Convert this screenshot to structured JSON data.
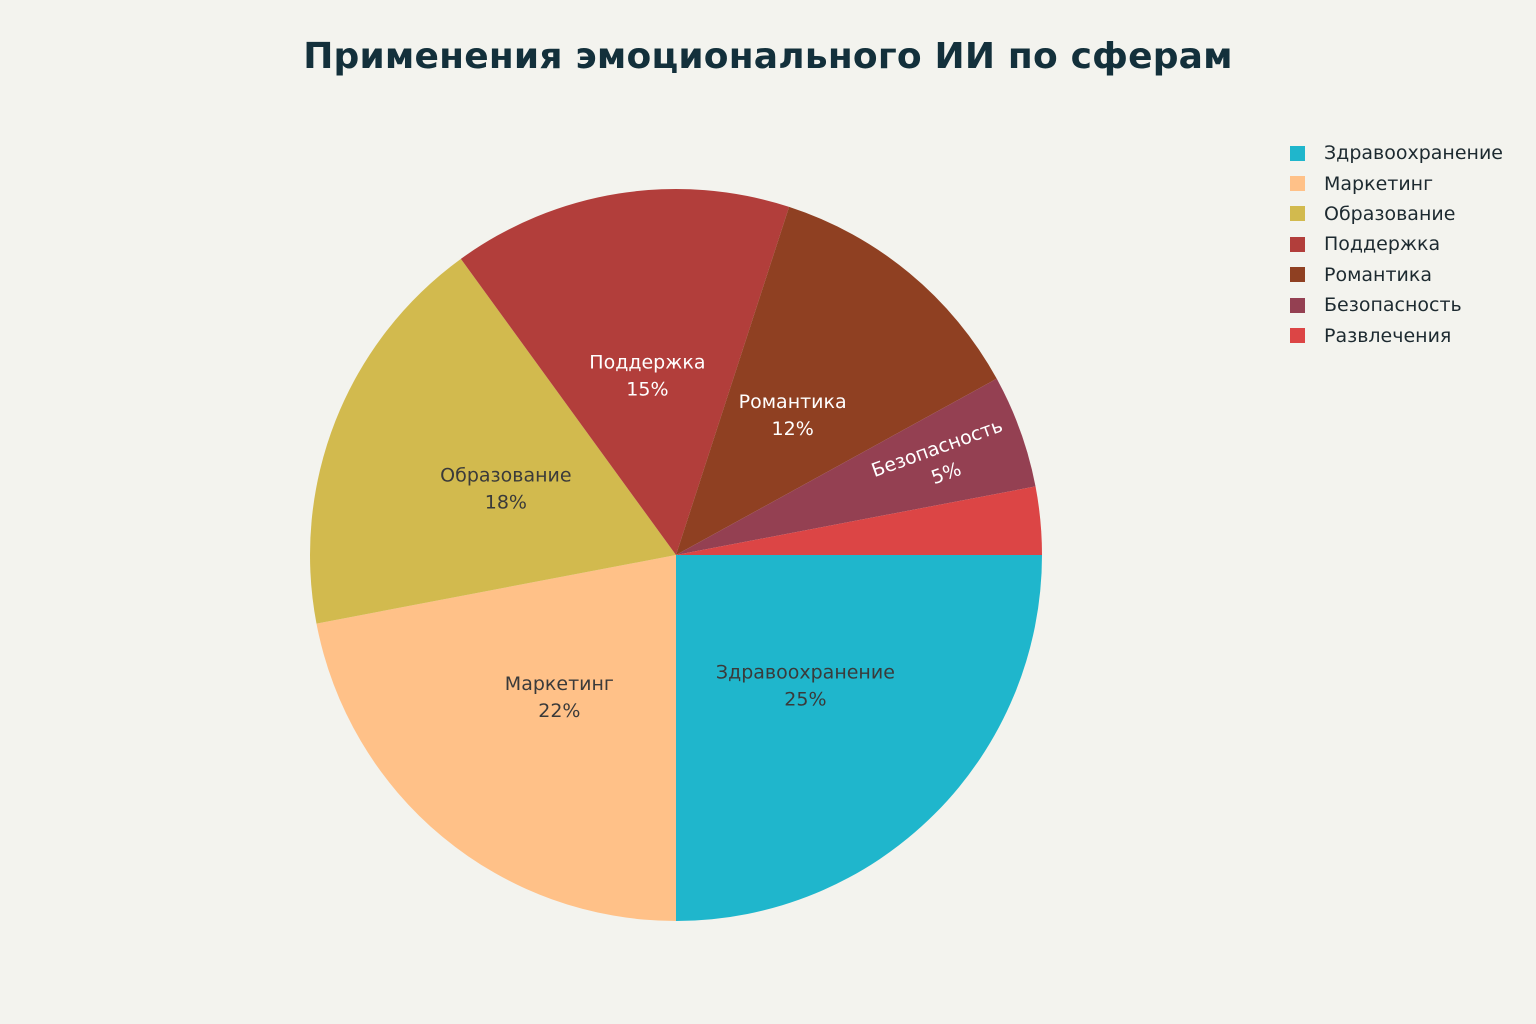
{
  "chart_data": {
    "type": "pie",
    "title": "Применения эмоционального ИИ по сферам",
    "categories": [
      "Здравоохранение",
      "Маркетинг",
      "Образование",
      "Поддержка",
      "Романтика",
      "Безопасность",
      "Развлечения"
    ],
    "values": [
      25,
      22,
      18,
      15,
      12,
      5,
      3
    ],
    "labels": [
      "25%",
      "22%",
      "18%",
      "15%",
      "12%",
      "5%",
      ""
    ],
    "colors": [
      "#1fb6cc",
      "#ffc188",
      "#d2ba4e",
      "#b23e3b",
      "#8f4022",
      "#944052",
      "#dc4545"
    ],
    "label_colors": [
      "#3a3a3a",
      "#3a3a3a",
      "#3a3a3a",
      "#ffffff",
      "#ffffff",
      "#ffffff",
      "#ffffff"
    ],
    "legend_position": "top-right",
    "direction": "clockwise",
    "start": "east"
  }
}
